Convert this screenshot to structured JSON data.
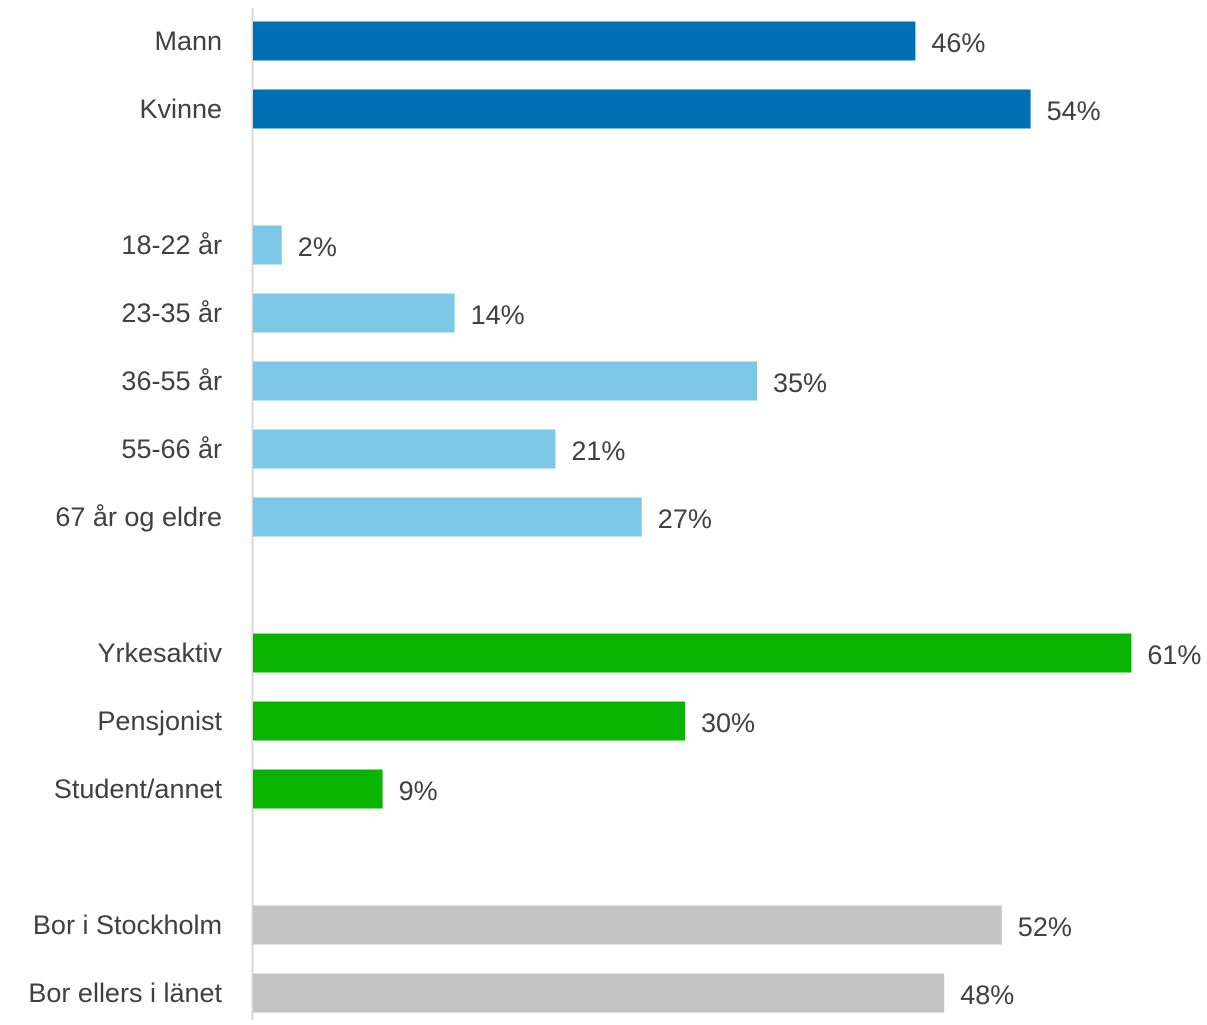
{
  "chart_data": {
    "type": "bar",
    "orientation": "horizontal",
    "categories": [
      "Mann",
      "Kvinne",
      "18-22 år",
      "23-35 år",
      "36-55 år",
      "55-66 år",
      "67 år og eldre",
      "Yrkesaktiv",
      "Pensjonist",
      "Student/annet",
      "Bor i Stockholm",
      "Bor ellers i länet"
    ],
    "values": [
      46,
      54,
      2,
      14,
      35,
      21,
      27,
      61,
      30,
      9,
      52,
      48
    ],
    "value_labels": [
      "46%",
      "54%",
      "2%",
      "14%",
      "35%",
      "21%",
      "27%",
      "61%",
      "30%",
      "9%",
      "52%",
      "48%"
    ],
    "groups": [
      {
        "categories": [
          "Mann",
          "Kvinne"
        ],
        "color": "#0070B4"
      },
      {
        "categories": [
          "18-22 år",
          "23-35 år",
          "36-55 år",
          "55-66 år",
          "67 år og eldre"
        ],
        "color": "#7DC8E6"
      },
      {
        "categories": [
          "Yrkesaktiv",
          "Pensjonist",
          "Student/annet"
        ],
        "color": "#09B400"
      },
      {
        "categories": [
          "Bor i Stockholm",
          "Bor ellers i länet"
        ],
        "color": "#C4C4C4"
      }
    ],
    "value_unit": "%",
    "xlim": [
      0,
      61
    ],
    "grid": false,
    "legend": "none",
    "title": "",
    "xlabel": "",
    "ylabel": ""
  }
}
